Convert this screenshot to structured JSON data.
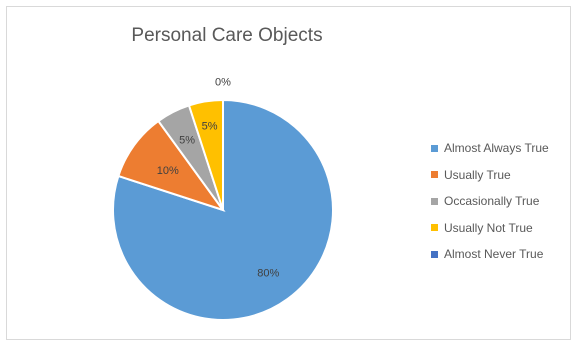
{
  "chart_data": {
    "type": "pie",
    "title": "Personal Care Objects",
    "categories": [
      "Almost Always True",
      "Usually True",
      "Occasionally True",
      "Usually Not True",
      "Almost Never True"
    ],
    "values": [
      80,
      10,
      5,
      5,
      0
    ],
    "data_labels": [
      "80%",
      "10%",
      "5%",
      "5%",
      "0%"
    ],
    "colors": [
      "#5b9bd5",
      "#ed7d31",
      "#a5a5a5",
      "#ffc000",
      "#4472c4"
    ],
    "legend_position": "right"
  }
}
